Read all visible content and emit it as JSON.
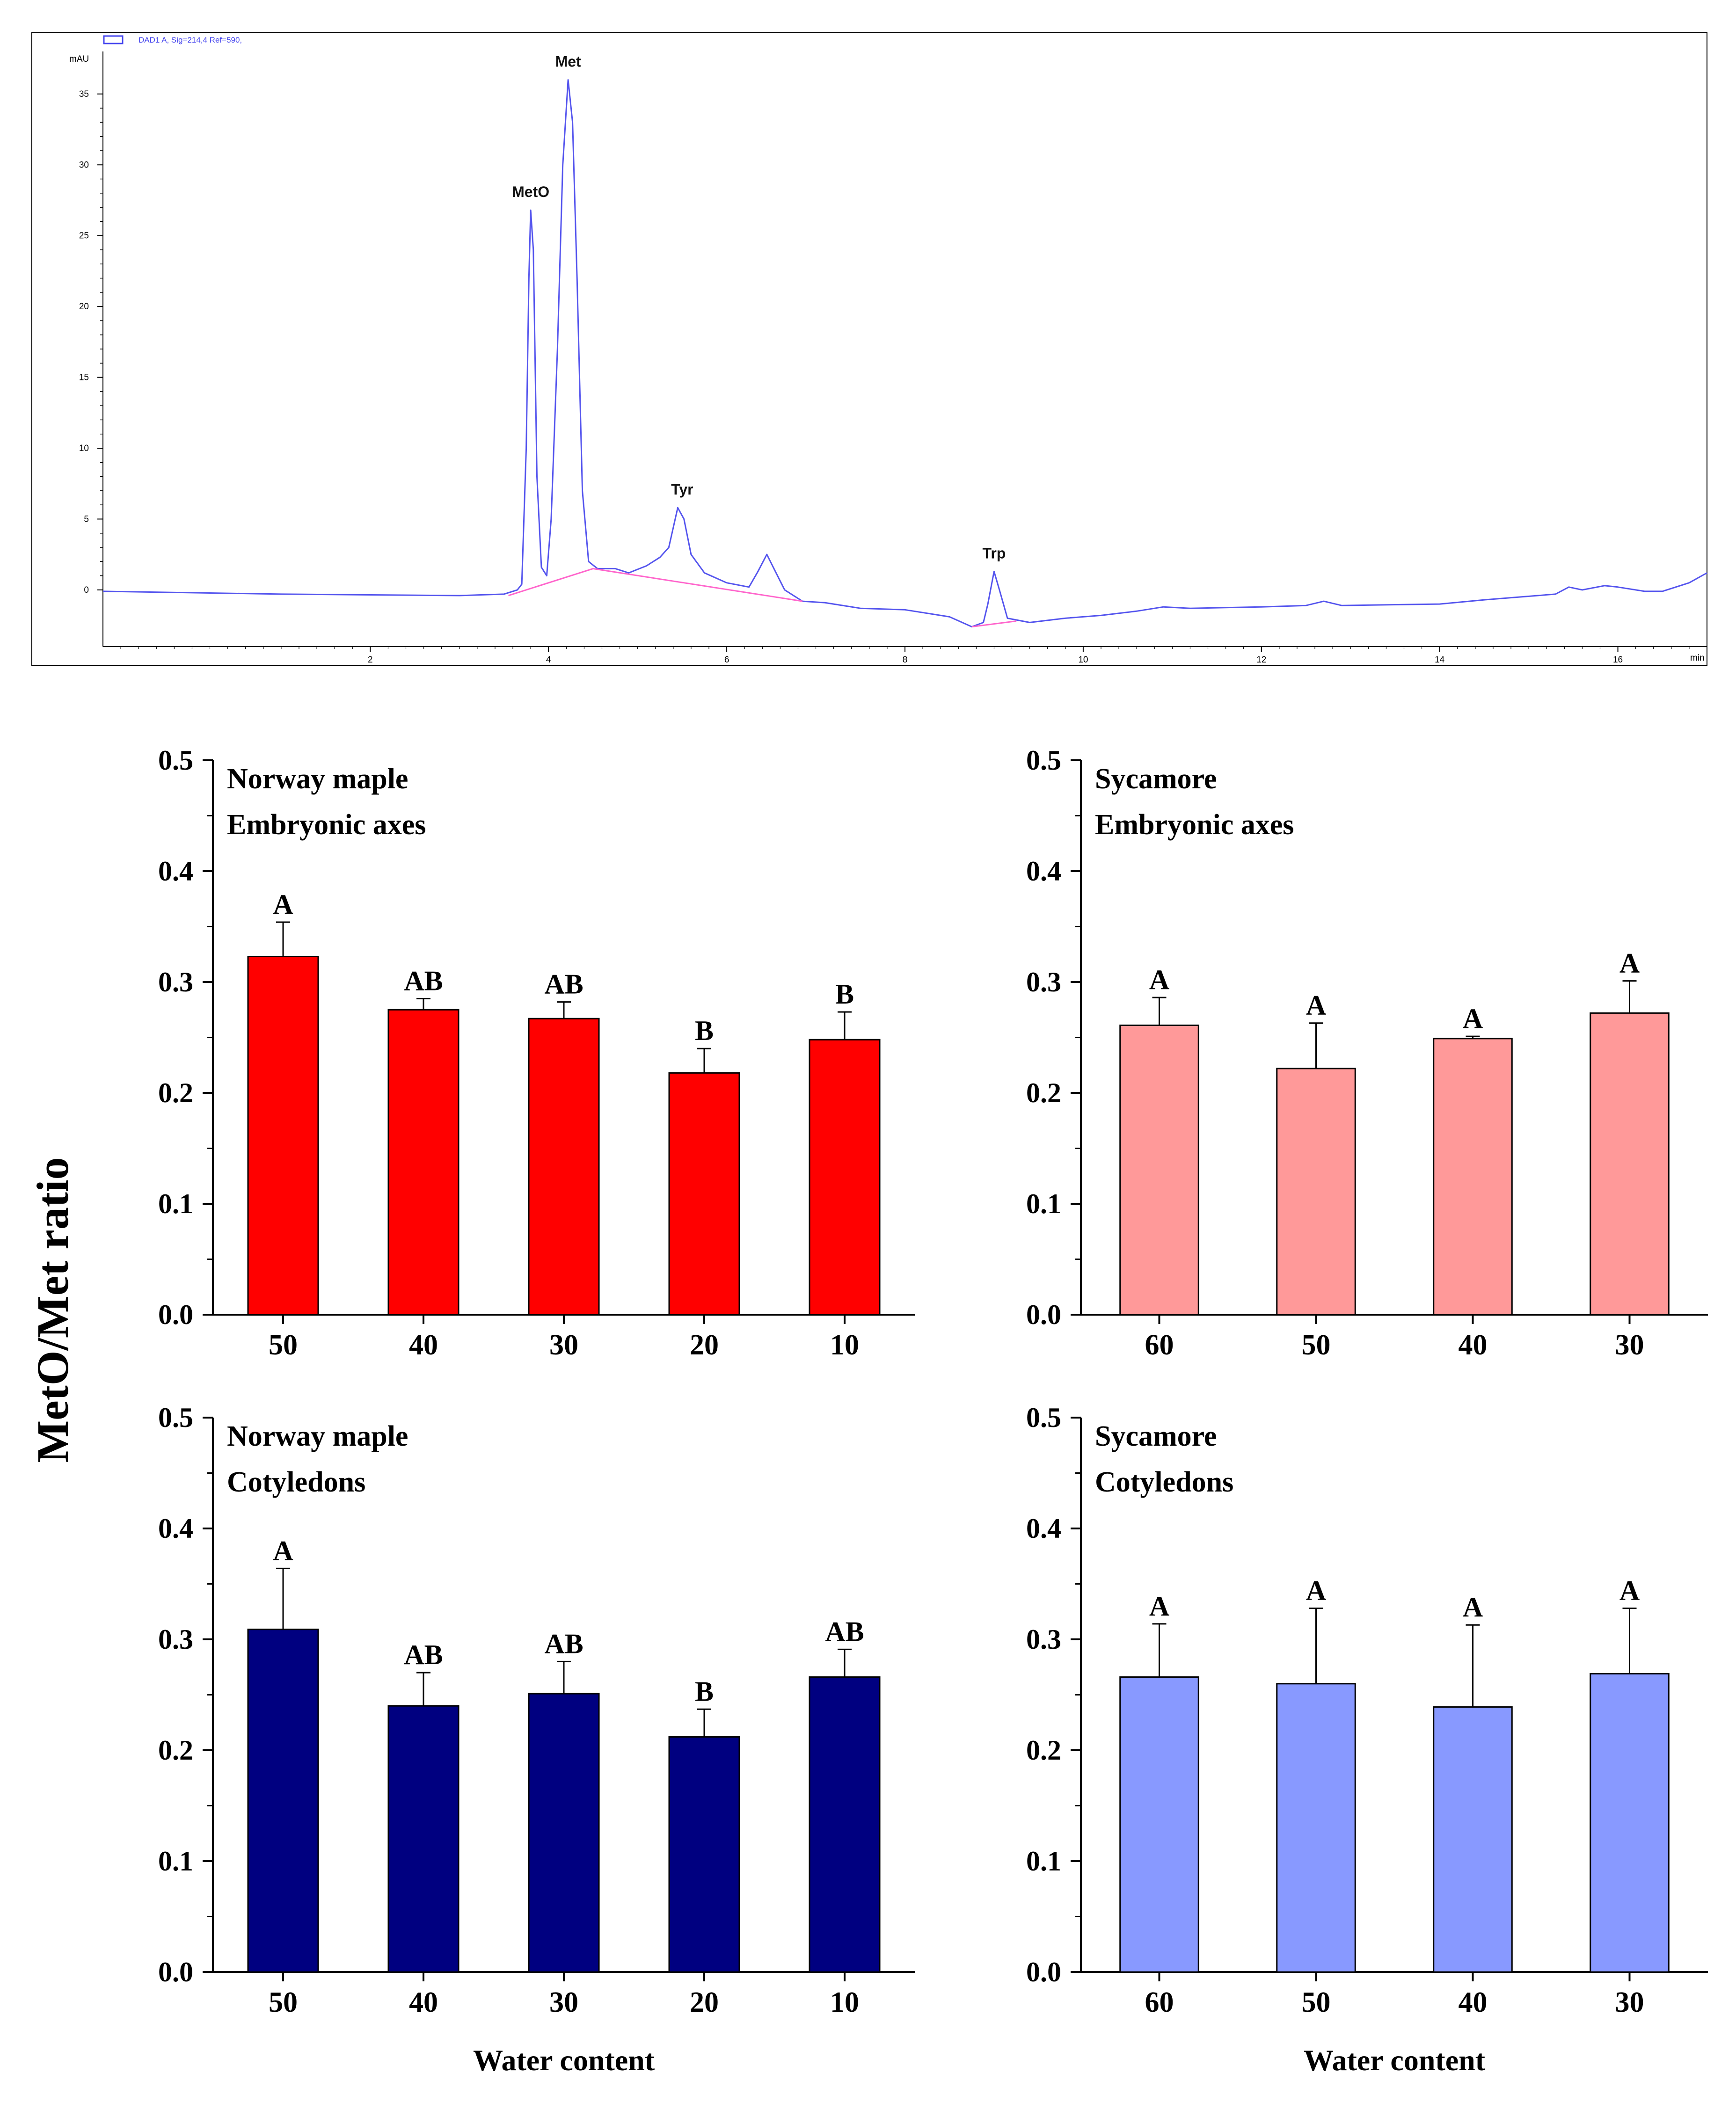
{
  "colors": {
    "trace": "#5555ee",
    "baseline": "#ff66cc",
    "axes": "#000000",
    "norway_axes_bar": "#ff0000",
    "sycamore_axes_bar": "#ff9999",
    "norway_cot_bar": "#000080",
    "sycamore_cot_bar": "#8899ff"
  },
  "chart_data": [
    {
      "id": "chromatogram",
      "type": "line",
      "legend": "DAD1 A, Sig=214,4 Ref=590,",
      "ylabel": "mAU",
      "xlabel": "min",
      "ylim": [
        -4,
        38
      ],
      "xlim": [
        -1,
        17
      ],
      "y_ticks": [
        0,
        5,
        10,
        15,
        20,
        25,
        30,
        35
      ],
      "x_ticks": [
        2,
        4,
        6,
        8,
        10,
        12,
        14,
        16
      ],
      "x_tick_labels": [
        "2",
        "4",
        "6",
        "8",
        "10",
        "12",
        "14",
        "16"
      ],
      "series": [
        {
          "name": "DAD1 A",
          "points": [
            [
              -1.0,
              -0.1
            ],
            [
              1.0,
              -0.3
            ],
            [
              3.0,
              -0.4
            ],
            [
              3.5,
              -0.3
            ],
            [
              3.65,
              0.0
            ],
            [
              3.7,
              0.4
            ],
            [
              3.75,
              10
            ],
            [
              3.78,
              22
            ],
            [
              3.8,
              26.8
            ],
            [
              3.83,
              24
            ],
            [
              3.87,
              8
            ],
            [
              3.92,
              1.6
            ],
            [
              3.98,
              1.0
            ],
            [
              4.03,
              5
            ],
            [
              4.1,
              17
            ],
            [
              4.16,
              30
            ],
            [
              4.22,
              36
            ],
            [
              4.27,
              33
            ],
            [
              4.32,
              22
            ],
            [
              4.38,
              7
            ],
            [
              4.45,
              2.0
            ],
            [
              4.55,
              1.5
            ],
            [
              4.75,
              1.5
            ],
            [
              4.9,
              1.2
            ],
            [
              5.1,
              1.7
            ],
            [
              5.25,
              2.3
            ],
            [
              5.35,
              3.0
            ],
            [
              5.45,
              5.8
            ],
            [
              5.52,
              5.0
            ],
            [
              5.6,
              2.5
            ],
            [
              5.75,
              1.2
            ],
            [
              6.0,
              0.5
            ],
            [
              6.25,
              0.2
            ],
            [
              6.35,
              1.3
            ],
            [
              6.45,
              2.5
            ],
            [
              6.53,
              1.5
            ],
            [
              6.65,
              0.0
            ],
            [
              6.85,
              -0.8
            ],
            [
              7.1,
              -0.9
            ],
            [
              7.5,
              -1.3
            ],
            [
              8.0,
              -1.4
            ],
            [
              8.5,
              -1.9
            ],
            [
              8.75,
              -2.6
            ],
            [
              8.88,
              -2.3
            ],
            [
              8.93,
              -1.0
            ],
            [
              9.0,
              1.3
            ],
            [
              9.06,
              0.0
            ],
            [
              9.15,
              -2.0
            ],
            [
              9.4,
              -2.3
            ],
            [
              9.8,
              -2.0
            ],
            [
              10.2,
              -1.8
            ],
            [
              10.6,
              -1.5
            ],
            [
              10.9,
              -1.2
            ],
            [
              11.2,
              -1.3
            ],
            [
              12.0,
              -1.2
            ],
            [
              12.5,
              -1.1
            ],
            [
              12.7,
              -0.8
            ],
            [
              12.9,
              -1.1
            ],
            [
              14.0,
              -1.0
            ],
            [
              14.5,
              -0.7
            ],
            [
              15.3,
              -0.3
            ],
            [
              15.45,
              0.2
            ],
            [
              15.6,
              0.0
            ],
            [
              15.85,
              0.3
            ],
            [
              16.0,
              0.2
            ],
            [
              16.3,
              -0.1
            ],
            [
              16.5,
              -0.1
            ],
            [
              16.8,
              0.5
            ],
            [
              17.0,
              1.2
            ]
          ]
        },
        {
          "name": "Baseline",
          "segments": [
            [
              [
                3.55,
                -0.4
              ],
              [
                4.5,
                1.5
              ]
            ],
            [
              [
                4.5,
                1.5
              ],
              [
                6.85,
                -0.8
              ]
            ],
            [
              [
                8.75,
                -2.6
              ],
              [
                9.25,
                -2.2
              ]
            ]
          ]
        }
      ],
      "annotations": [
        {
          "text": "MetO",
          "x": 3.8,
          "y": 26.8
        },
        {
          "text": "Met",
          "x": 4.22,
          "y": 36
        },
        {
          "text": "Tyr",
          "x": 5.5,
          "y": 5.8
        },
        {
          "text": "Trp",
          "x": 9.0,
          "y": 1.3
        }
      ]
    },
    {
      "id": "norway-axes",
      "type": "bar",
      "title_lines": [
        "Norway maple",
        "Embryonic axes"
      ],
      "categories": [
        "50",
        "40",
        "30",
        "20",
        "10"
      ],
      "values": [
        0.323,
        0.275,
        0.267,
        0.218,
        0.248
      ],
      "errors": [
        0.031,
        0.01,
        0.015,
        0.022,
        0.025
      ],
      "letters": [
        "A",
        "AB",
        "AB",
        "B",
        "B"
      ],
      "ylim": [
        0,
        0.5
      ],
      "y_tick_labels": [
        "0.0",
        "0.1",
        "0.2",
        "0.3",
        "0.4",
        "0.5"
      ],
      "xlabel": "",
      "color_key": "norway_axes_bar"
    },
    {
      "id": "sycamore-axes",
      "type": "bar",
      "title_lines": [
        "Sycamore",
        "Embryonic axes"
      ],
      "categories": [
        "60",
        "50",
        "40",
        "30"
      ],
      "values": [
        0.261,
        0.222,
        0.249,
        0.272
      ],
      "errors": [
        0.025,
        0.041,
        0.002,
        0.029
      ],
      "letters": [
        "A",
        "A",
        "A",
        "A"
      ],
      "ylim": [
        0,
        0.5
      ],
      "y_tick_labels": [
        "0.0",
        "0.1",
        "0.2",
        "0.3",
        "0.4",
        "0.5"
      ],
      "xlabel": "",
      "color_key": "sycamore_axes_bar"
    },
    {
      "id": "norway-cotyledons",
      "type": "bar",
      "title_lines": [
        "Norway maple",
        "Cotyledons"
      ],
      "categories": [
        "50",
        "40",
        "30",
        "20",
        "10"
      ],
      "values": [
        0.309,
        0.24,
        0.251,
        0.212,
        0.266
      ],
      "errors": [
        0.055,
        0.03,
        0.029,
        0.025,
        0.025
      ],
      "letters": [
        "A",
        "AB",
        "AB",
        "B",
        "AB"
      ],
      "ylim": [
        0,
        0.5
      ],
      "y_tick_labels": [
        "0.0",
        "0.1",
        "0.2",
        "0.3",
        "0.4",
        "0.5"
      ],
      "xlabel": "Water content",
      "color_key": "norway_cot_bar"
    },
    {
      "id": "sycamore-cotyledons",
      "type": "bar",
      "title_lines": [
        "Sycamore",
        "Cotyledons"
      ],
      "categories": [
        "60",
        "50",
        "40",
        "30"
      ],
      "values": [
        0.266,
        0.26,
        0.239,
        0.269
      ],
      "errors": [
        0.048,
        0.068,
        0.074,
        0.059
      ],
      "letters": [
        "A",
        "A",
        "A",
        "A"
      ],
      "ylim": [
        0,
        0.5
      ],
      "y_tick_labels": [
        "0.0",
        "0.1",
        "0.2",
        "0.3",
        "0.4",
        "0.5"
      ],
      "xlabel": "Water content",
      "color_key": "sycamore_cot_bar"
    }
  ],
  "shared_ylabel": "MetO/Met ratio"
}
